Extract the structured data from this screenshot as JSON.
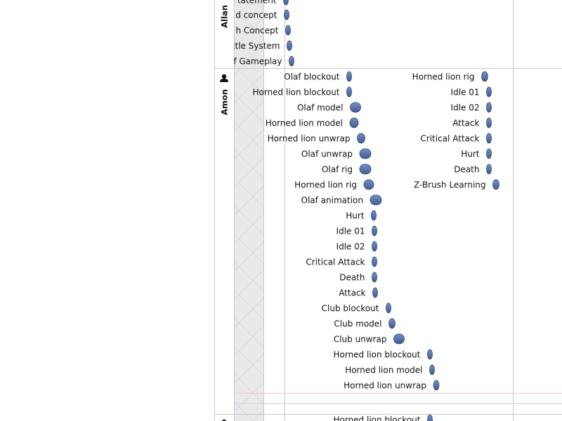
{
  "resources": [
    {
      "name": "Allan",
      "tasks": [
        "tatement",
        "d concept",
        "h Concept",
        "ttle System",
        "f Gameplay"
      ]
    },
    {
      "name": "Amon",
      "tasks": [
        "Olaf blockout",
        "Horned lion blockout",
        "Olaf model",
        "Horned lion model",
        "Horned lion unwrap",
        "Olaf unwrap",
        "Olaf rig",
        "Horned lion rig",
        "Olaf animation",
        "Hurt",
        "Idle 01",
        "Idle 02",
        "Critical Attack",
        "Death",
        "Attack",
        "Club blockout",
        "Club model",
        "Club unwrap",
        "Horned lion blockout",
        "Horned lion model",
        "Horned lion unwrap",
        "Horned lion rig",
        "Idle 01",
        "Idle 02",
        "Attack",
        "Critical Attack",
        "Hurt",
        "Death",
        "Z-Brush Learning"
      ]
    },
    {
      "tasks": [
        "Horned lion blockout"
      ]
    }
  ]
}
